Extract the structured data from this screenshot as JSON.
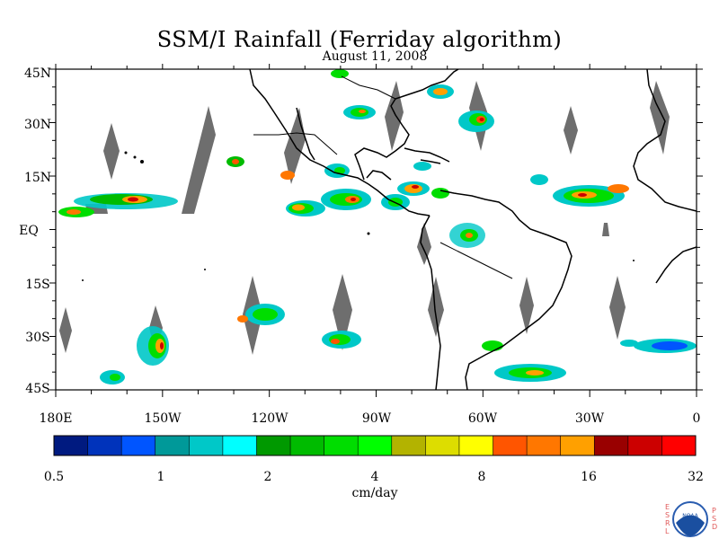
{
  "title": "SSM/I Rainfall (Ferriday algorithm)",
  "subtitle": "August 11, 2008",
  "axes": {
    "lat_labels": [
      "45N",
      "30N",
      "15N",
      "EQ",
      "15S",
      "30S",
      "45S"
    ],
    "lat_values": [
      45,
      30,
      15,
      0,
      -15,
      -30,
      -45
    ],
    "lon_labels": [
      "180E",
      "150W",
      "120W",
      "90W",
      "60W",
      "30W",
      "0"
    ],
    "lon_values": [
      -180,
      -150,
      -120,
      -90,
      -60,
      -30,
      0
    ],
    "lon_range": [
      -180,
      0
    ],
    "lat_range": [
      -45,
      45
    ]
  },
  "colorbar": {
    "units": "cm/day",
    "tick_labels": [
      "0.5",
      "1",
      "2",
      "4",
      "8",
      "16",
      "32"
    ],
    "colors": [
      "#001a80",
      "#0033bb",
      "#0055ff",
      "#009999",
      "#00c8c8",
      "#00ffff",
      "#009900",
      "#00bb00",
      "#00dd00",
      "#00ff00",
      "#b3b300",
      "#dddd00",
      "#ffff00",
      "#ff5500",
      "#ff7700",
      "#ffa000",
      "#990000",
      "#cc0000",
      "#ff0000"
    ]
  },
  "logo": {
    "left_letters": [
      "E",
      "S",
      "R",
      "L"
    ],
    "right_letters": [
      "P",
      "S",
      "D"
    ],
    "center_text": "NOAA"
  }
}
